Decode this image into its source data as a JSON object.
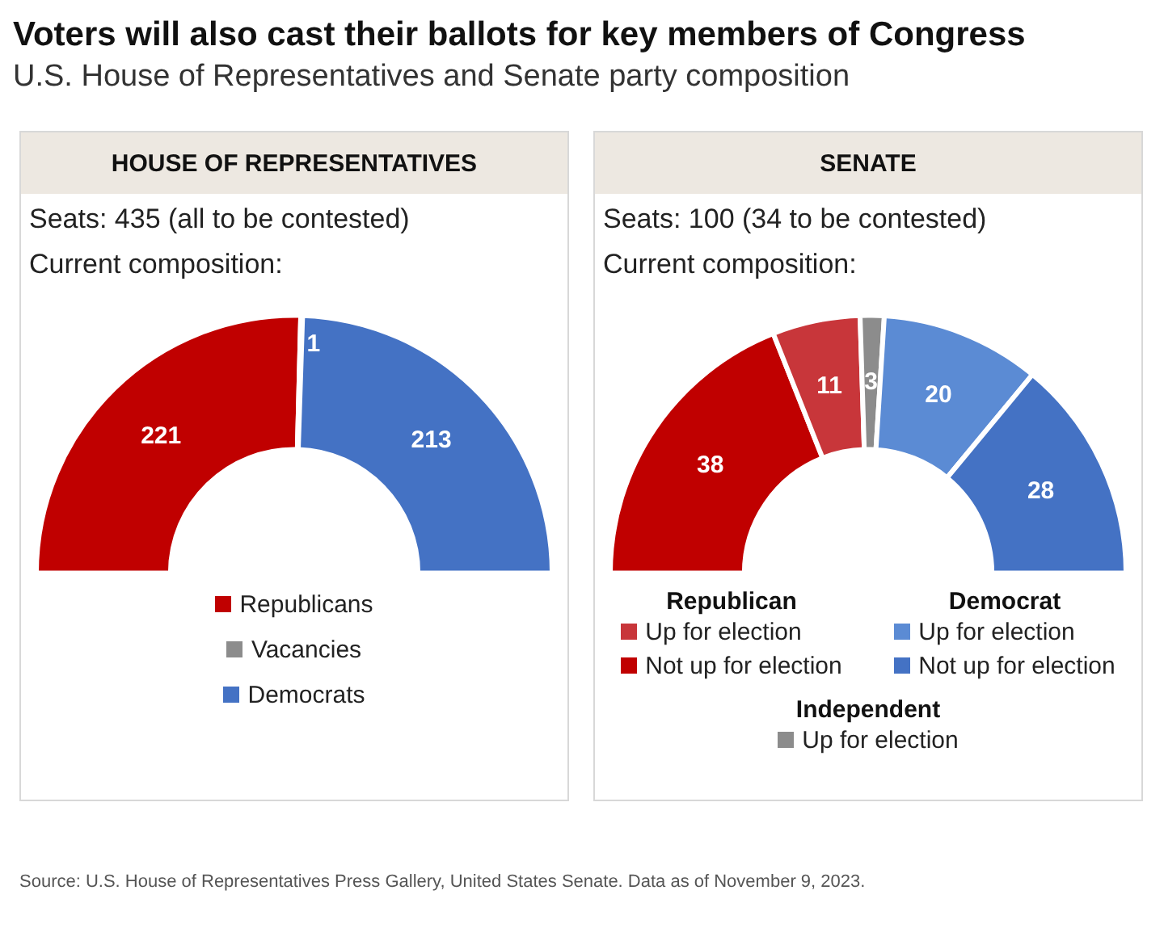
{
  "chart_data": [
    {
      "type": "other",
      "title": "Voters will also cast their ballots for key members of Congress",
      "subtitle": "U.S. House of Representatives and Senate party composition",
      "annotations": [
        "Source: U.S. House of Representatives Press Gallery, United States Senate. Data as of November 9, 2023."
      ]
    },
    {
      "type": "donut",
      "title": "HOUSE OF REPRESENTATIVES",
      "subtitle": "Seats: 435 (all to be contested)",
      "annotations": [
        "Current composition:"
      ],
      "categories": [
        "Republicans",
        "Vacancies",
        "Democrats"
      ],
      "values": [
        221,
        1,
        213
      ],
      "colors": [
        "#c00000",
        "#8c8c8c",
        "#4472c4"
      ],
      "data_labels": true,
      "legend": "bottom"
    },
    {
      "type": "donut",
      "title": "SENATE",
      "subtitle": "Seats: 100 (34 to be contested)",
      "annotations": [
        "Current composition:",
        "Republican",
        "Democrat",
        "Independent"
      ],
      "categories": [
        "Not up for election",
        "Up for election",
        "Up for election",
        "Up for election",
        "Not up for election"
      ],
      "values": [
        38,
        11,
        3,
        20,
        28
      ],
      "colors": [
        "#c00000",
        "#c8363a",
        "#8c8c8c",
        "#5b8bd4",
        "#4472c4"
      ],
      "data_labels": true,
      "legend": "bottom"
    }
  ]
}
